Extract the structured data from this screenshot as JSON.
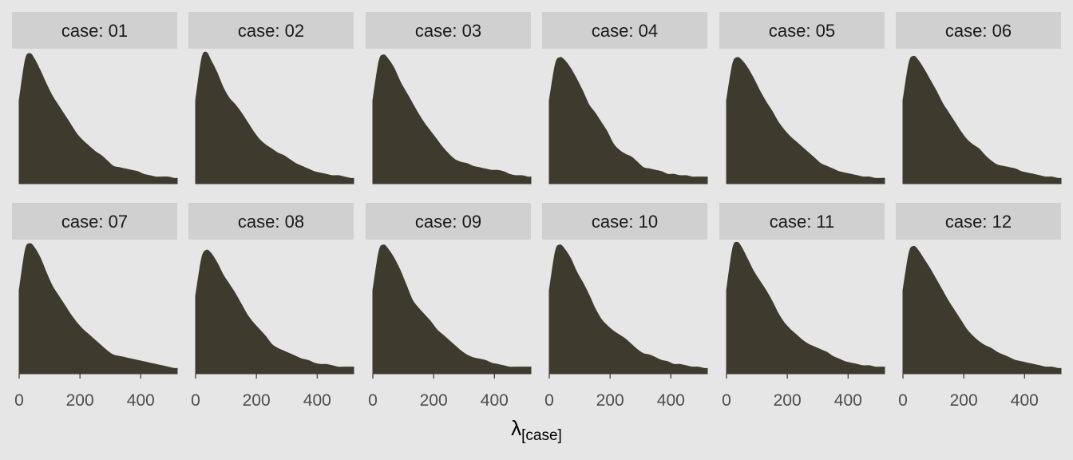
{
  "chart_data": {
    "type": "area",
    "chart_kind": "faceted density plot",
    "xlabel": "λ",
    "xlabel_subscript": "[case]",
    "ylabel": "",
    "xlim": [
      0,
      520
    ],
    "x_ticks": [
      0,
      200,
      400
    ],
    "y_axis_shown": false,
    "grid": false,
    "legend": "none",
    "fill_color": "#3f3a2e",
    "panel_background": "#e6e6e6",
    "strip_background": "#d0d0d0",
    "x": [
      0,
      20,
      35,
      50,
      70,
      90,
      110,
      130,
      150,
      170,
      190,
      210,
      230,
      250,
      270,
      290,
      310,
      330,
      350,
      370,
      390,
      410,
      430,
      450,
      470,
      490,
      510,
      520
    ],
    "panels": [
      {
        "label": "case: 01",
        "values": [
          0.62,
          0.92,
          0.97,
          0.93,
          0.84,
          0.74,
          0.65,
          0.58,
          0.51,
          0.44,
          0.37,
          0.32,
          0.28,
          0.24,
          0.21,
          0.17,
          0.13,
          0.12,
          0.11,
          0.1,
          0.09,
          0.07,
          0.06,
          0.05,
          0.05,
          0.05,
          0.04,
          0.04
        ]
      },
      {
        "label": "case: 02",
        "values": [
          0.62,
          0.93,
          0.98,
          0.92,
          0.83,
          0.72,
          0.64,
          0.59,
          0.53,
          0.46,
          0.39,
          0.33,
          0.29,
          0.26,
          0.23,
          0.21,
          0.18,
          0.15,
          0.13,
          0.11,
          0.09,
          0.08,
          0.07,
          0.06,
          0.06,
          0.05,
          0.04,
          0.04
        ]
      },
      {
        "label": "case: 03",
        "values": [
          0.62,
          0.91,
          0.96,
          0.93,
          0.86,
          0.76,
          0.68,
          0.6,
          0.52,
          0.45,
          0.39,
          0.33,
          0.27,
          0.22,
          0.18,
          0.16,
          0.15,
          0.13,
          0.12,
          0.11,
          0.1,
          0.1,
          0.09,
          0.07,
          0.06,
          0.06,
          0.05,
          0.05
        ]
      },
      {
        "label": "case: 04",
        "values": [
          0.62,
          0.89,
          0.94,
          0.92,
          0.86,
          0.78,
          0.69,
          0.59,
          0.53,
          0.46,
          0.39,
          0.3,
          0.25,
          0.22,
          0.2,
          0.16,
          0.12,
          0.11,
          0.1,
          0.09,
          0.07,
          0.07,
          0.06,
          0.06,
          0.05,
          0.05,
          0.05,
          0.05
        ]
      },
      {
        "label": "case: 05",
        "values": [
          0.62,
          0.89,
          0.94,
          0.92,
          0.86,
          0.78,
          0.69,
          0.61,
          0.54,
          0.46,
          0.4,
          0.35,
          0.31,
          0.27,
          0.23,
          0.19,
          0.15,
          0.13,
          0.11,
          0.09,
          0.08,
          0.07,
          0.06,
          0.05,
          0.05,
          0.04,
          0.04,
          0.04
        ]
      },
      {
        "label": "case: 06",
        "values": [
          0.62,
          0.9,
          0.95,
          0.92,
          0.85,
          0.77,
          0.69,
          0.6,
          0.53,
          0.46,
          0.39,
          0.33,
          0.29,
          0.26,
          0.21,
          0.17,
          0.14,
          0.13,
          0.12,
          0.11,
          0.09,
          0.08,
          0.07,
          0.06,
          0.05,
          0.05,
          0.04,
          0.04
        ]
      },
      {
        "label": "case: 07",
        "values": [
          0.62,
          0.92,
          0.97,
          0.94,
          0.86,
          0.75,
          0.65,
          0.58,
          0.51,
          0.44,
          0.38,
          0.33,
          0.29,
          0.25,
          0.21,
          0.17,
          0.14,
          0.13,
          0.12,
          0.11,
          0.1,
          0.09,
          0.08,
          0.07,
          0.06,
          0.05,
          0.04,
          0.04
        ]
      },
      {
        "label": "case: 08",
        "values": [
          0.58,
          0.86,
          0.92,
          0.9,
          0.83,
          0.74,
          0.67,
          0.6,
          0.52,
          0.44,
          0.38,
          0.33,
          0.28,
          0.22,
          0.19,
          0.17,
          0.15,
          0.13,
          0.11,
          0.1,
          0.08,
          0.07,
          0.07,
          0.06,
          0.05,
          0.05,
          0.05,
          0.05
        ]
      },
      {
        "label": "case: 09",
        "values": [
          0.62,
          0.91,
          0.96,
          0.93,
          0.86,
          0.77,
          0.66,
          0.55,
          0.49,
          0.44,
          0.39,
          0.33,
          0.29,
          0.25,
          0.21,
          0.17,
          0.14,
          0.12,
          0.11,
          0.1,
          0.08,
          0.07,
          0.06,
          0.05,
          0.05,
          0.05,
          0.05,
          0.05
        ]
      },
      {
        "label": "case: 10",
        "values": [
          0.62,
          0.91,
          0.96,
          0.93,
          0.86,
          0.76,
          0.68,
          0.59,
          0.49,
          0.41,
          0.36,
          0.32,
          0.29,
          0.26,
          0.22,
          0.18,
          0.15,
          0.14,
          0.12,
          0.1,
          0.09,
          0.07,
          0.07,
          0.06,
          0.05,
          0.05,
          0.04,
          0.04
        ]
      },
      {
        "label": "case: 11",
        "values": [
          0.62,
          0.93,
          0.98,
          0.94,
          0.85,
          0.76,
          0.69,
          0.62,
          0.54,
          0.45,
          0.38,
          0.33,
          0.29,
          0.25,
          0.22,
          0.2,
          0.18,
          0.16,
          0.13,
          0.11,
          0.09,
          0.08,
          0.07,
          0.06,
          0.06,
          0.05,
          0.05,
          0.05
        ]
      },
      {
        "label": "case: 12",
        "values": [
          0.62,
          0.9,
          0.95,
          0.92,
          0.85,
          0.78,
          0.7,
          0.62,
          0.54,
          0.47,
          0.4,
          0.33,
          0.28,
          0.24,
          0.21,
          0.19,
          0.16,
          0.14,
          0.12,
          0.1,
          0.09,
          0.08,
          0.07,
          0.06,
          0.05,
          0.05,
          0.04,
          0.04
        ]
      }
    ]
  }
}
